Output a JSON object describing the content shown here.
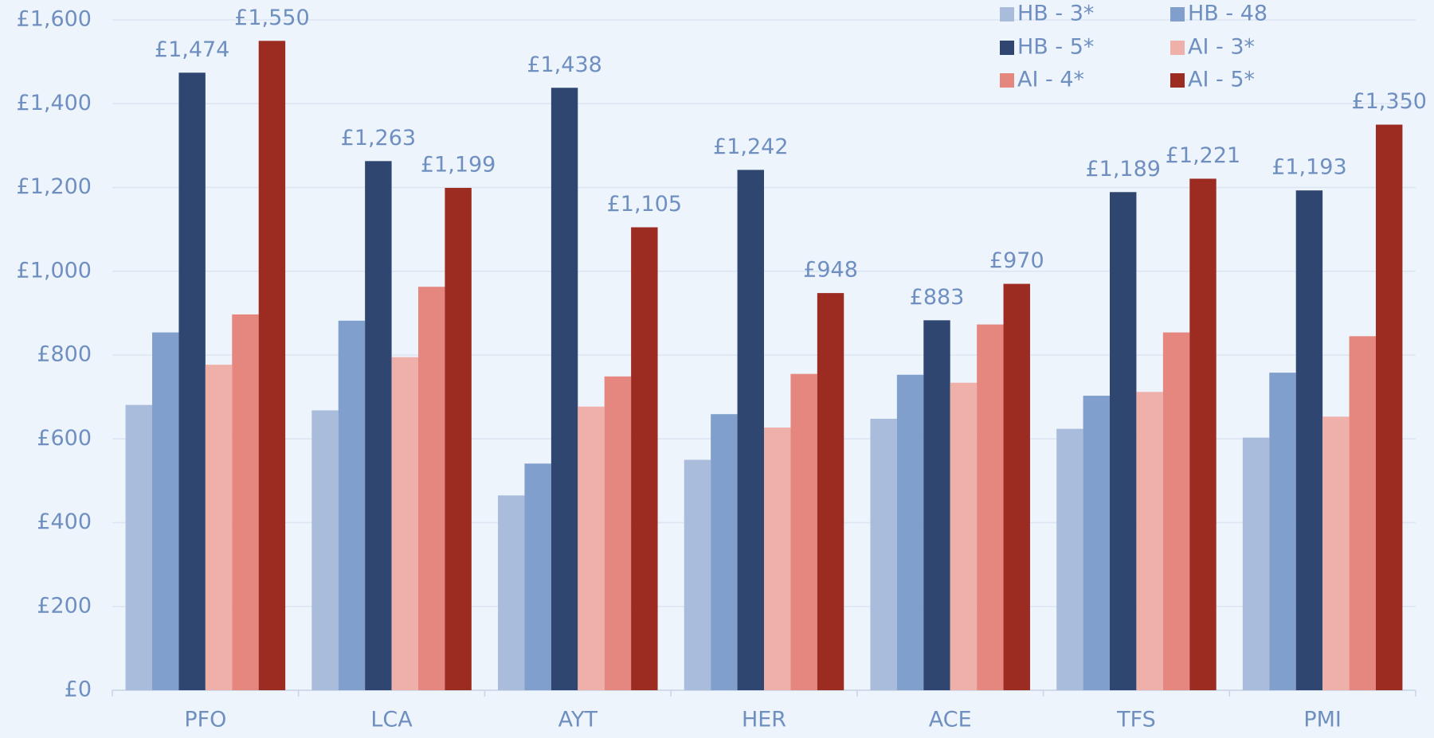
{
  "chart_data": {
    "type": "bar",
    "categories": [
      "PFO",
      "LCA",
      "AYT",
      "HER",
      "ACE",
      "TFS",
      "PMI"
    ],
    "series": [
      {
        "name": "HB - 3*",
        "color": "#a9bcdc",
        "values": [
          681,
          668,
          465,
          550,
          648,
          624,
          603
        ]
      },
      {
        "name": "HB - 48",
        "color": "#819fcc",
        "values": [
          854,
          882,
          541,
          659,
          753,
          703,
          758
        ]
      },
      {
        "name": "HB - 5*",
        "color": "#2e4670",
        "values": [
          1474,
          1263,
          1438,
          1242,
          883,
          1189,
          1193
        ],
        "value_labels": [
          "£1,474",
          "£1,263",
          "£1,438",
          "£1,242",
          "£883",
          "£1,189",
          "£1,193"
        ]
      },
      {
        "name": "AI - 3*",
        "color": "#efb0aa",
        "values": [
          777,
          795,
          677,
          627,
          734,
          712,
          653
        ]
      },
      {
        "name": "AI - 4*",
        "color": "#e5877f",
        "values": [
          897,
          963,
          749,
          755,
          873,
          854,
          845
        ]
      },
      {
        "name": "AI - 5*",
        "color": "#9c2b22",
        "values": [
          1550,
          1199,
          1105,
          948,
          970,
          1221,
          1350
        ],
        "value_labels": [
          "£1,550",
          "£1,199",
          "£1,105",
          "£948",
          "£970",
          "£1,221",
          "£1,350"
        ]
      }
    ],
    "ylim": [
      0,
      1600
    ],
    "yticks": [
      {
        "value": 0,
        "label": "£0"
      },
      {
        "value": 200,
        "label": "£200"
      },
      {
        "value": 400,
        "label": "£400"
      },
      {
        "value": 600,
        "label": "£600"
      },
      {
        "value": 800,
        "label": "£800"
      },
      {
        "value": 1000,
        "label": "£1,000"
      },
      {
        "value": 1200,
        "label": "£1,200"
      },
      {
        "value": 1400,
        "label": "£1,400"
      },
      {
        "value": 1600,
        "label": "£1,600"
      }
    ],
    "grid": true,
    "legend": "top-right"
  }
}
